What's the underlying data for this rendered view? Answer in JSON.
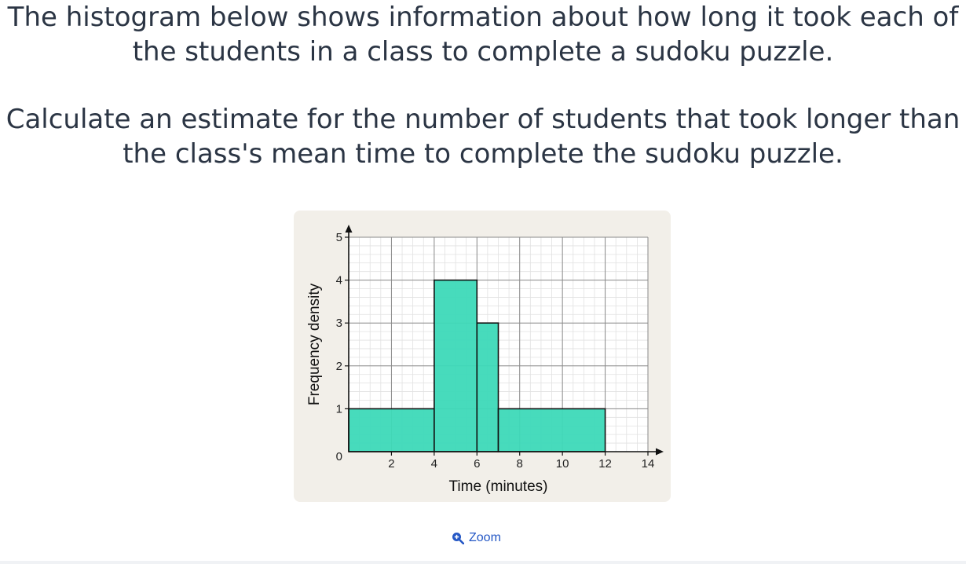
{
  "question": {
    "line1": "The histogram below shows information about how long it took each of the students in a class to complete a sudoku puzzle.",
    "line2": "Calculate an estimate for the number of students that took longer than the class's mean time to complete the sudoku puzzle."
  },
  "zoom_label": "Zoom",
  "colors": {
    "bar_fill": "#3dd9b8",
    "accent": "#2457c5",
    "card_bg": "#f2efe9"
  },
  "chart_data": {
    "type": "bar",
    "subtype": "histogram",
    "xlabel": "Time (minutes)",
    "ylabel": "Frequency density",
    "xlim": [
      0,
      14
    ],
    "ylim": [
      0,
      5
    ],
    "x_ticks": [
      2,
      4,
      6,
      8,
      10,
      12,
      14
    ],
    "y_ticks": [
      1,
      2,
      3,
      4,
      5
    ],
    "origin_label": "0",
    "grid": true,
    "bins": [
      {
        "from": 0,
        "to": 4,
        "frequency_density": 1
      },
      {
        "from": 4,
        "to": 6,
        "frequency_density": 4
      },
      {
        "from": 6,
        "to": 7,
        "frequency_density": 3
      },
      {
        "from": 7,
        "to": 12,
        "frequency_density": 1
      }
    ]
  }
}
